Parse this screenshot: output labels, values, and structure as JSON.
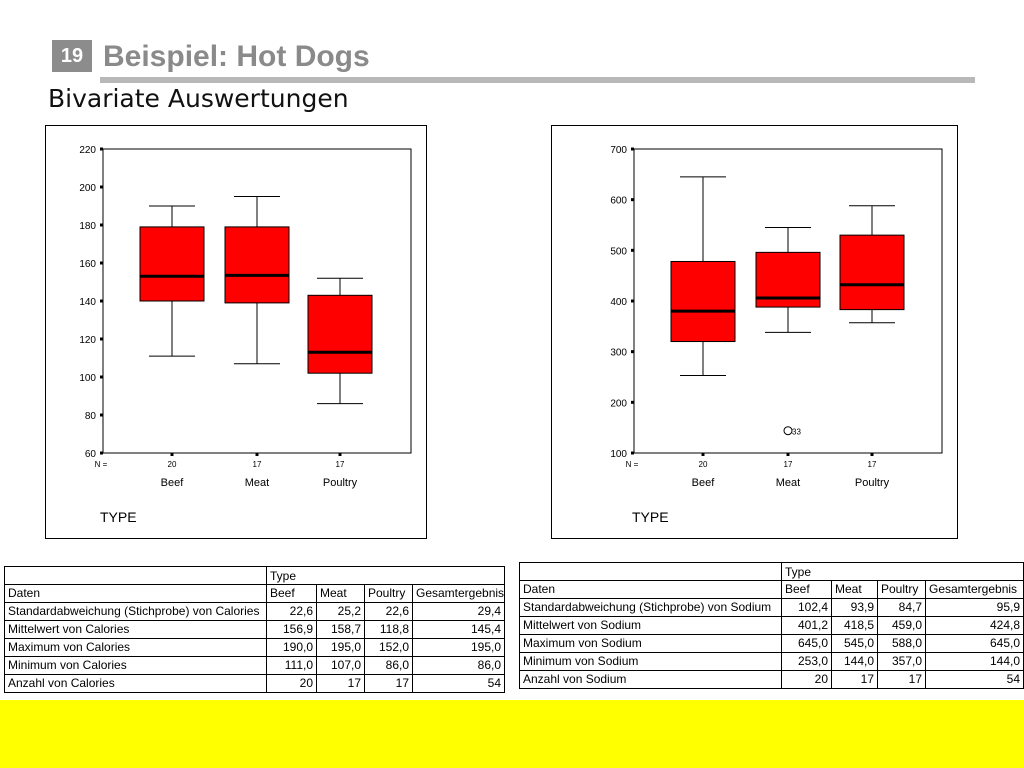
{
  "slide": {
    "number": "19",
    "title": "Beispiel: Hot Dogs",
    "subtitle": "Bivariate Auswertungen"
  },
  "colors": {
    "box_fill": "#ff0000",
    "footer": "#ffff00",
    "title_gray": "#8a8a8a"
  },
  "chart_data": [
    {
      "type": "boxplot",
      "xlabel": "TYPE",
      "ylim": [
        60,
        220
      ],
      "yticks": [
        "60",
        "80",
        "100",
        "120",
        "140",
        "160",
        "180",
        "200",
        "220"
      ],
      "categories": [
        "Beef",
        "Meat",
        "Poultry"
      ],
      "n_label": "N =",
      "n_values": [
        "20",
        "17",
        "17"
      ],
      "boxes": [
        {
          "category": "Beef",
          "min": 111,
          "q1": 140,
          "median": 153,
          "q3": 179,
          "max": 190
        },
        {
          "category": "Meat",
          "min": 107,
          "q1": 139,
          "median": 153.5,
          "q3": 179,
          "max": 195
        },
        {
          "category": "Poultry",
          "min": 86,
          "q1": 102,
          "median": 113,
          "q3": 143,
          "max": 152
        }
      ],
      "outliers": []
    },
    {
      "type": "boxplot",
      "xlabel": "TYPE",
      "ylim": [
        100,
        700
      ],
      "yticks": [
        "100",
        "200",
        "300",
        "400",
        "500",
        "600",
        "700"
      ],
      "categories": [
        "Beef",
        "Meat",
        "Poultry"
      ],
      "n_label": "N =",
      "n_values": [
        "20",
        "17",
        "17"
      ],
      "boxes": [
        {
          "category": "Beef",
          "min": 253,
          "q1": 320,
          "median": 380,
          "q3": 478,
          "max": 645
        },
        {
          "category": "Meat",
          "min": 338,
          "q1": 388,
          "median": 406,
          "q3": 496,
          "max": 545
        },
        {
          "category": "Poultry",
          "min": 357,
          "q1": 383,
          "median": 432,
          "q3": 530,
          "max": 588
        }
      ],
      "outliers": [
        {
          "category": "Meat",
          "value": 144,
          "label": "33"
        }
      ]
    }
  ],
  "table_calories": {
    "type_header": "Type",
    "row_header": "Daten",
    "columns": [
      "Beef",
      "Meat",
      "Poultry",
      "Gesamtergebnis"
    ],
    "rows": [
      {
        "label": "Standardabweichung (Stichprobe) von Calories",
        "values": [
          "22,6",
          "25,2",
          "22,6",
          "29,4"
        ]
      },
      {
        "label": "Mittelwert von Calories",
        "values": [
          "156,9",
          "158,7",
          "118,8",
          "145,4"
        ]
      },
      {
        "label": "Maximum von Calories",
        "values": [
          "190,0",
          "195,0",
          "152,0",
          "195,0"
        ]
      },
      {
        "label": "Minimum von Calories",
        "values": [
          "111,0",
          "107,0",
          "86,0",
          "86,0"
        ]
      },
      {
        "label": "Anzahl von Calories",
        "values": [
          "20",
          "17",
          "17",
          "54"
        ]
      }
    ]
  },
  "table_sodium": {
    "type_header": "Type",
    "row_header": "Daten",
    "columns": [
      "Beef",
      "Meat",
      "Poultry",
      "Gesamtergebnis"
    ],
    "rows": [
      {
        "label": "Standardabweichung (Stichprobe) von Sodium",
        "values": [
          "102,4",
          "93,9",
          "84,7",
          "95,9"
        ]
      },
      {
        "label": "Mittelwert von Sodium",
        "values": [
          "401,2",
          "418,5",
          "459,0",
          "424,8"
        ]
      },
      {
        "label": "Maximum von Sodium",
        "values": [
          "645,0",
          "545,0",
          "588,0",
          "645,0"
        ]
      },
      {
        "label": "Minimum von Sodium",
        "values": [
          "253,0",
          "144,0",
          "357,0",
          "144,0"
        ]
      },
      {
        "label": "Anzahl von Sodium",
        "values": [
          "20",
          "17",
          "17",
          "54"
        ]
      }
    ]
  }
}
